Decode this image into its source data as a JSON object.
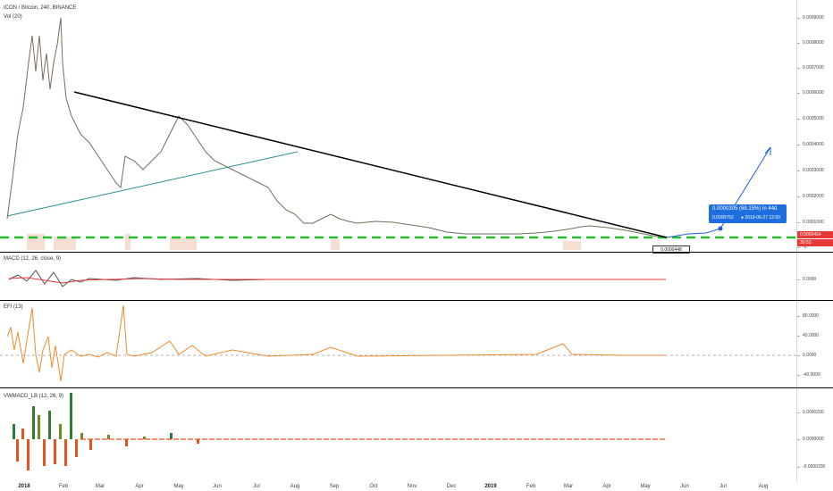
{
  "header": {
    "title": "ICON / Bitcoin, 240, BINANCE",
    "volume_label": "Vol (20)"
  },
  "price_pane": {
    "ticks": [
      "0.0009000",
      "0.0008000",
      "0.0007000",
      "0.0006000",
      "0.0005000",
      "0.0004000",
      "0.0003000",
      "0.0002000",
      "0.0001000",
      "-0."
    ],
    "last_price": "0.0000454",
    "countdown": "30:53",
    "low_label": "0.0000448",
    "tooltip": {
      "line1": "0.0000305 (68.15%) in 44d",
      "line2": "0.0000752",
      "line3": "● 2019-06-27  12:00"
    },
    "colors": {
      "support": "#22c02a",
      "trend": "#000000",
      "channel": "#2a8f8f",
      "projection": "#1e5fd6",
      "price_tag": "#e53935"
    }
  },
  "macd_pane": {
    "label": "MACD (12, 26, close, 9)",
    "ticks": [
      "0.0000"
    ]
  },
  "efi_pane": {
    "label": "EFI (13)",
    "ticks": [
      "80.0000",
      "40.0000",
      "0.0000",
      "-40.0000"
    ]
  },
  "vwmacd_pane": {
    "label": "VWMACD_LB (12, 26, 9)",
    "ticks": [
      "0.0000200",
      "0.0000000",
      "-0.0000200"
    ]
  },
  "x_axis": {
    "labels": [
      "2018",
      "Feb",
      "Mar",
      "Apr",
      "May",
      "Jun",
      "Jul",
      "Aug",
      "Sep",
      "Oct",
      "Nov",
      "Dec",
      "2019",
      "Feb",
      "Mar",
      "Apr",
      "May",
      "Jun",
      "Jul",
      "Aug"
    ]
  },
  "chart_data": {
    "type": "line",
    "title": "ICON / Bitcoin, 240, BINANCE",
    "x": [
      "2018-01",
      "2018-02",
      "2018-03",
      "2018-04",
      "2018-05",
      "2018-06",
      "2018-07",
      "2018-08",
      "2018-09",
      "2018-10",
      "2018-11",
      "2018-12",
      "2019-01",
      "2019-02",
      "2019-03",
      "2019-04",
      "2019-05"
    ],
    "series": [
      {
        "values": [
          0.0004,
          0.0007,
          0.0003,
          0.00032,
          0.00048,
          0.00033,
          0.00026,
          0.00015,
          8e-05,
          8e-05,
          7e-05,
          4e-05,
          4e-05,
          4e-05,
          7e-05,
          6e-05,
          4.54e-05
        ]
      }
    ],
    "ylim": [
      0,
      0.00095
    ]
  }
}
